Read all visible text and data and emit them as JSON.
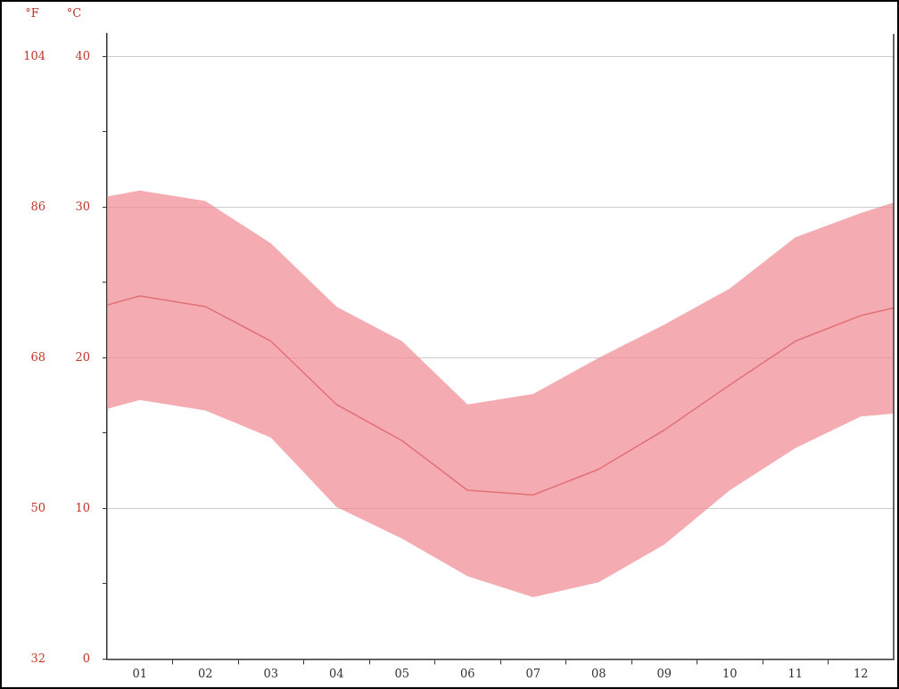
{
  "chart_data": {
    "type": "line",
    "ylabel": "°C",
    "y2label": "°F",
    "x": [
      0.5,
      1,
      2,
      3,
      4,
      5,
      6,
      7,
      8,
      9,
      10,
      11,
      12,
      12.5
    ],
    "xlim": [
      0.5,
      12.5
    ],
    "xticks": [
      {
        "value": 1,
        "label": "01"
      },
      {
        "value": 1.5,
        "label": null
      },
      {
        "value": 2,
        "label": "02"
      },
      {
        "value": 2.5,
        "label": null
      },
      {
        "value": 3,
        "label": "03"
      },
      {
        "value": 3.5,
        "label": null
      },
      {
        "value": 4,
        "label": "04"
      },
      {
        "value": 4.5,
        "label": null
      },
      {
        "value": 5,
        "label": "05"
      },
      {
        "value": 5.5,
        "label": null
      },
      {
        "value": 6,
        "label": "06"
      },
      {
        "value": 6.5,
        "label": null
      },
      {
        "value": 7,
        "label": "07"
      },
      {
        "value": 7.5,
        "label": null
      },
      {
        "value": 8,
        "label": "08"
      },
      {
        "value": 8.5,
        "label": null
      },
      {
        "value": 9,
        "label": "09"
      },
      {
        "value": 9.5,
        "label": null
      },
      {
        "value": 10,
        "label": "10"
      },
      {
        "value": 10.5,
        "label": null
      },
      {
        "value": 11,
        "label": "11"
      },
      {
        "value": 11.5,
        "label": null
      },
      {
        "value": 12,
        "label": "12"
      }
    ],
    "ylim": [
      0,
      41.5
    ],
    "yticks": [
      0,
      {
        "value": 5,
        "label": null
      },
      10,
      {
        "value": 15,
        "label": null
      },
      20,
      {
        "value": 25,
        "label": null
      },
      30,
      {
        "value": 35,
        "label": null
      },
      40
    ],
    "y2lim": [
      32,
      106.7
    ],
    "y2ticks": [
      32,
      50,
      68,
      86,
      104
    ],
    "series": [
      {
        "color": "#c0282d",
        "values": [
          23.5,
          24.1,
          23.4,
          21.1,
          16.9,
          14.5,
          11.2,
          10.9,
          12.6,
          15.2,
          18.2,
          21.1,
          22.8,
          23.3
        ],
        "lower": [
          16.6,
          17.2,
          16.5,
          14.7,
          10.1,
          8.0,
          5.5,
          4.1,
          5.1,
          7.6,
          11.2,
          14.0,
          16.1,
          16.3
        ],
        "upper": [
          30.7,
          31.1,
          30.4,
          27.6,
          23.4,
          21.1,
          16.9,
          17.6,
          20.0,
          22.2,
          24.6,
          28.0,
          29.6,
          30.3
        ]
      }
    ],
    "grid": "y",
    "legend": false,
    "marker": "none",
    "line_style": "solid"
  }
}
